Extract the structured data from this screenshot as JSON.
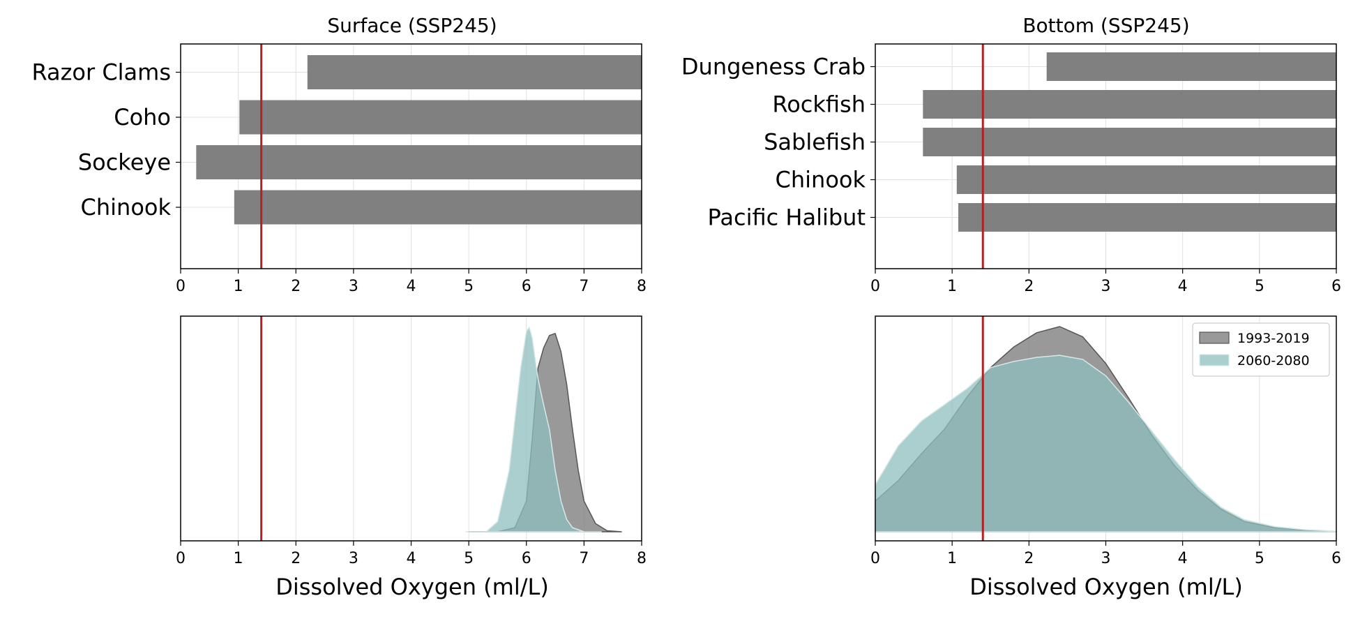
{
  "colors": {
    "bar": "#808080",
    "threshold": "#b22222",
    "historical": "#808080",
    "future": "#8fbfbf",
    "grid": "#e0e0e0"
  },
  "chart_data": [
    {
      "id": "surface-bars",
      "type": "bar",
      "orientation": "horizontal",
      "title": "Surface (SSP245)",
      "xlabel": "",
      "categories": [
        "Razor Clams",
        "Coho",
        "Sockeye",
        "Chinook"
      ],
      "starts": [
        2.2,
        1.02,
        0.27,
        0.93
      ],
      "ends": [
        8,
        8,
        8,
        8
      ],
      "xlim": [
        0,
        8
      ],
      "xticks": [
        "0",
        "1",
        "2",
        "3",
        "4",
        "5",
        "6",
        "7",
        "8"
      ],
      "threshold": 1.4,
      "grid": true
    },
    {
      "id": "bottom-bars",
      "type": "bar",
      "orientation": "horizontal",
      "title": "Bottom (SSP245)",
      "xlabel": "",
      "categories": [
        "Dungeness Crab",
        "Rockfish",
        "Sablefish",
        "Chinook",
        "Pacific Halibut"
      ],
      "starts": [
        2.23,
        0.62,
        0.62,
        1.06,
        1.08
      ],
      "ends": [
        6,
        6,
        6,
        6,
        6
      ],
      "xlim": [
        0,
        6
      ],
      "xticks": [
        "0",
        "1",
        "2",
        "3",
        "4",
        "5",
        "6"
      ],
      "threshold": 1.4,
      "grid": true
    },
    {
      "id": "surface-density",
      "type": "area",
      "title": "",
      "xlabel": "Dissolved Oxygen (ml/L)",
      "xlim": [
        0,
        8
      ],
      "xticks": [
        "0",
        "1",
        "2",
        "3",
        "4",
        "5",
        "6",
        "7",
        "8"
      ],
      "threshold": 1.4,
      "grid": true,
      "series": [
        {
          "key": "historical",
          "x": [
            5.0,
            5.5,
            5.8,
            6.0,
            6.1,
            6.2,
            6.3,
            6.4,
            6.5,
            6.6,
            6.7,
            6.8,
            6.9,
            7.0,
            7.2,
            7.4,
            7.65
          ],
          "y": [
            0.0,
            0.0,
            0.02,
            0.15,
            0.45,
            0.8,
            0.9,
            0.96,
            0.97,
            0.88,
            0.72,
            0.5,
            0.3,
            0.15,
            0.04,
            0.005,
            0.0
          ]
        },
        {
          "key": "future",
          "x": [
            4.95,
            5.3,
            5.5,
            5.7,
            5.8,
            5.9,
            6.0,
            6.05,
            6.1,
            6.2,
            6.3,
            6.4,
            6.5,
            6.6,
            6.7,
            6.8,
            7.0,
            7.3
          ],
          "y": [
            0.0,
            0.0,
            0.05,
            0.3,
            0.55,
            0.8,
            0.98,
            1.0,
            0.95,
            0.75,
            0.62,
            0.5,
            0.3,
            0.15,
            0.06,
            0.02,
            0.0,
            0.0
          ]
        }
      ]
    },
    {
      "id": "bottom-density",
      "type": "area",
      "title": "",
      "xlabel": "Dissolved Oxygen (ml/L)",
      "xlim": [
        0,
        6
      ],
      "xticks": [
        "0",
        "1",
        "2",
        "3",
        "4",
        "5",
        "6"
      ],
      "threshold": 1.4,
      "grid": true,
      "legend_position": "top-right",
      "legend": [
        {
          "key": "historical",
          "label": "1993-2019"
        },
        {
          "key": "future",
          "label": "2060-2080"
        }
      ],
      "series": [
        {
          "key": "historical",
          "x": [
            0,
            0.3,
            0.6,
            0.9,
            1.2,
            1.5,
            1.8,
            2.1,
            2.4,
            2.7,
            3.0,
            3.3,
            3.6,
            3.9,
            4.2,
            4.5,
            4.8,
            5.2,
            5.6,
            6.0
          ],
          "y": [
            0.15,
            0.25,
            0.38,
            0.5,
            0.66,
            0.8,
            0.9,
            0.97,
            1.0,
            0.95,
            0.82,
            0.65,
            0.47,
            0.32,
            0.2,
            0.11,
            0.05,
            0.02,
            0.008,
            0.002
          ]
        },
        {
          "key": "future",
          "x": [
            0,
            0.3,
            0.6,
            0.9,
            1.2,
            1.5,
            1.8,
            2.1,
            2.4,
            2.7,
            3.0,
            3.3,
            3.6,
            3.9,
            4.2,
            4.5,
            4.8,
            5.2,
            5.6,
            6.0
          ],
          "y": [
            0.23,
            0.42,
            0.54,
            0.62,
            0.7,
            0.8,
            0.83,
            0.85,
            0.86,
            0.84,
            0.76,
            0.63,
            0.49,
            0.35,
            0.22,
            0.12,
            0.06,
            0.025,
            0.01,
            0.003
          ]
        }
      ]
    }
  ]
}
